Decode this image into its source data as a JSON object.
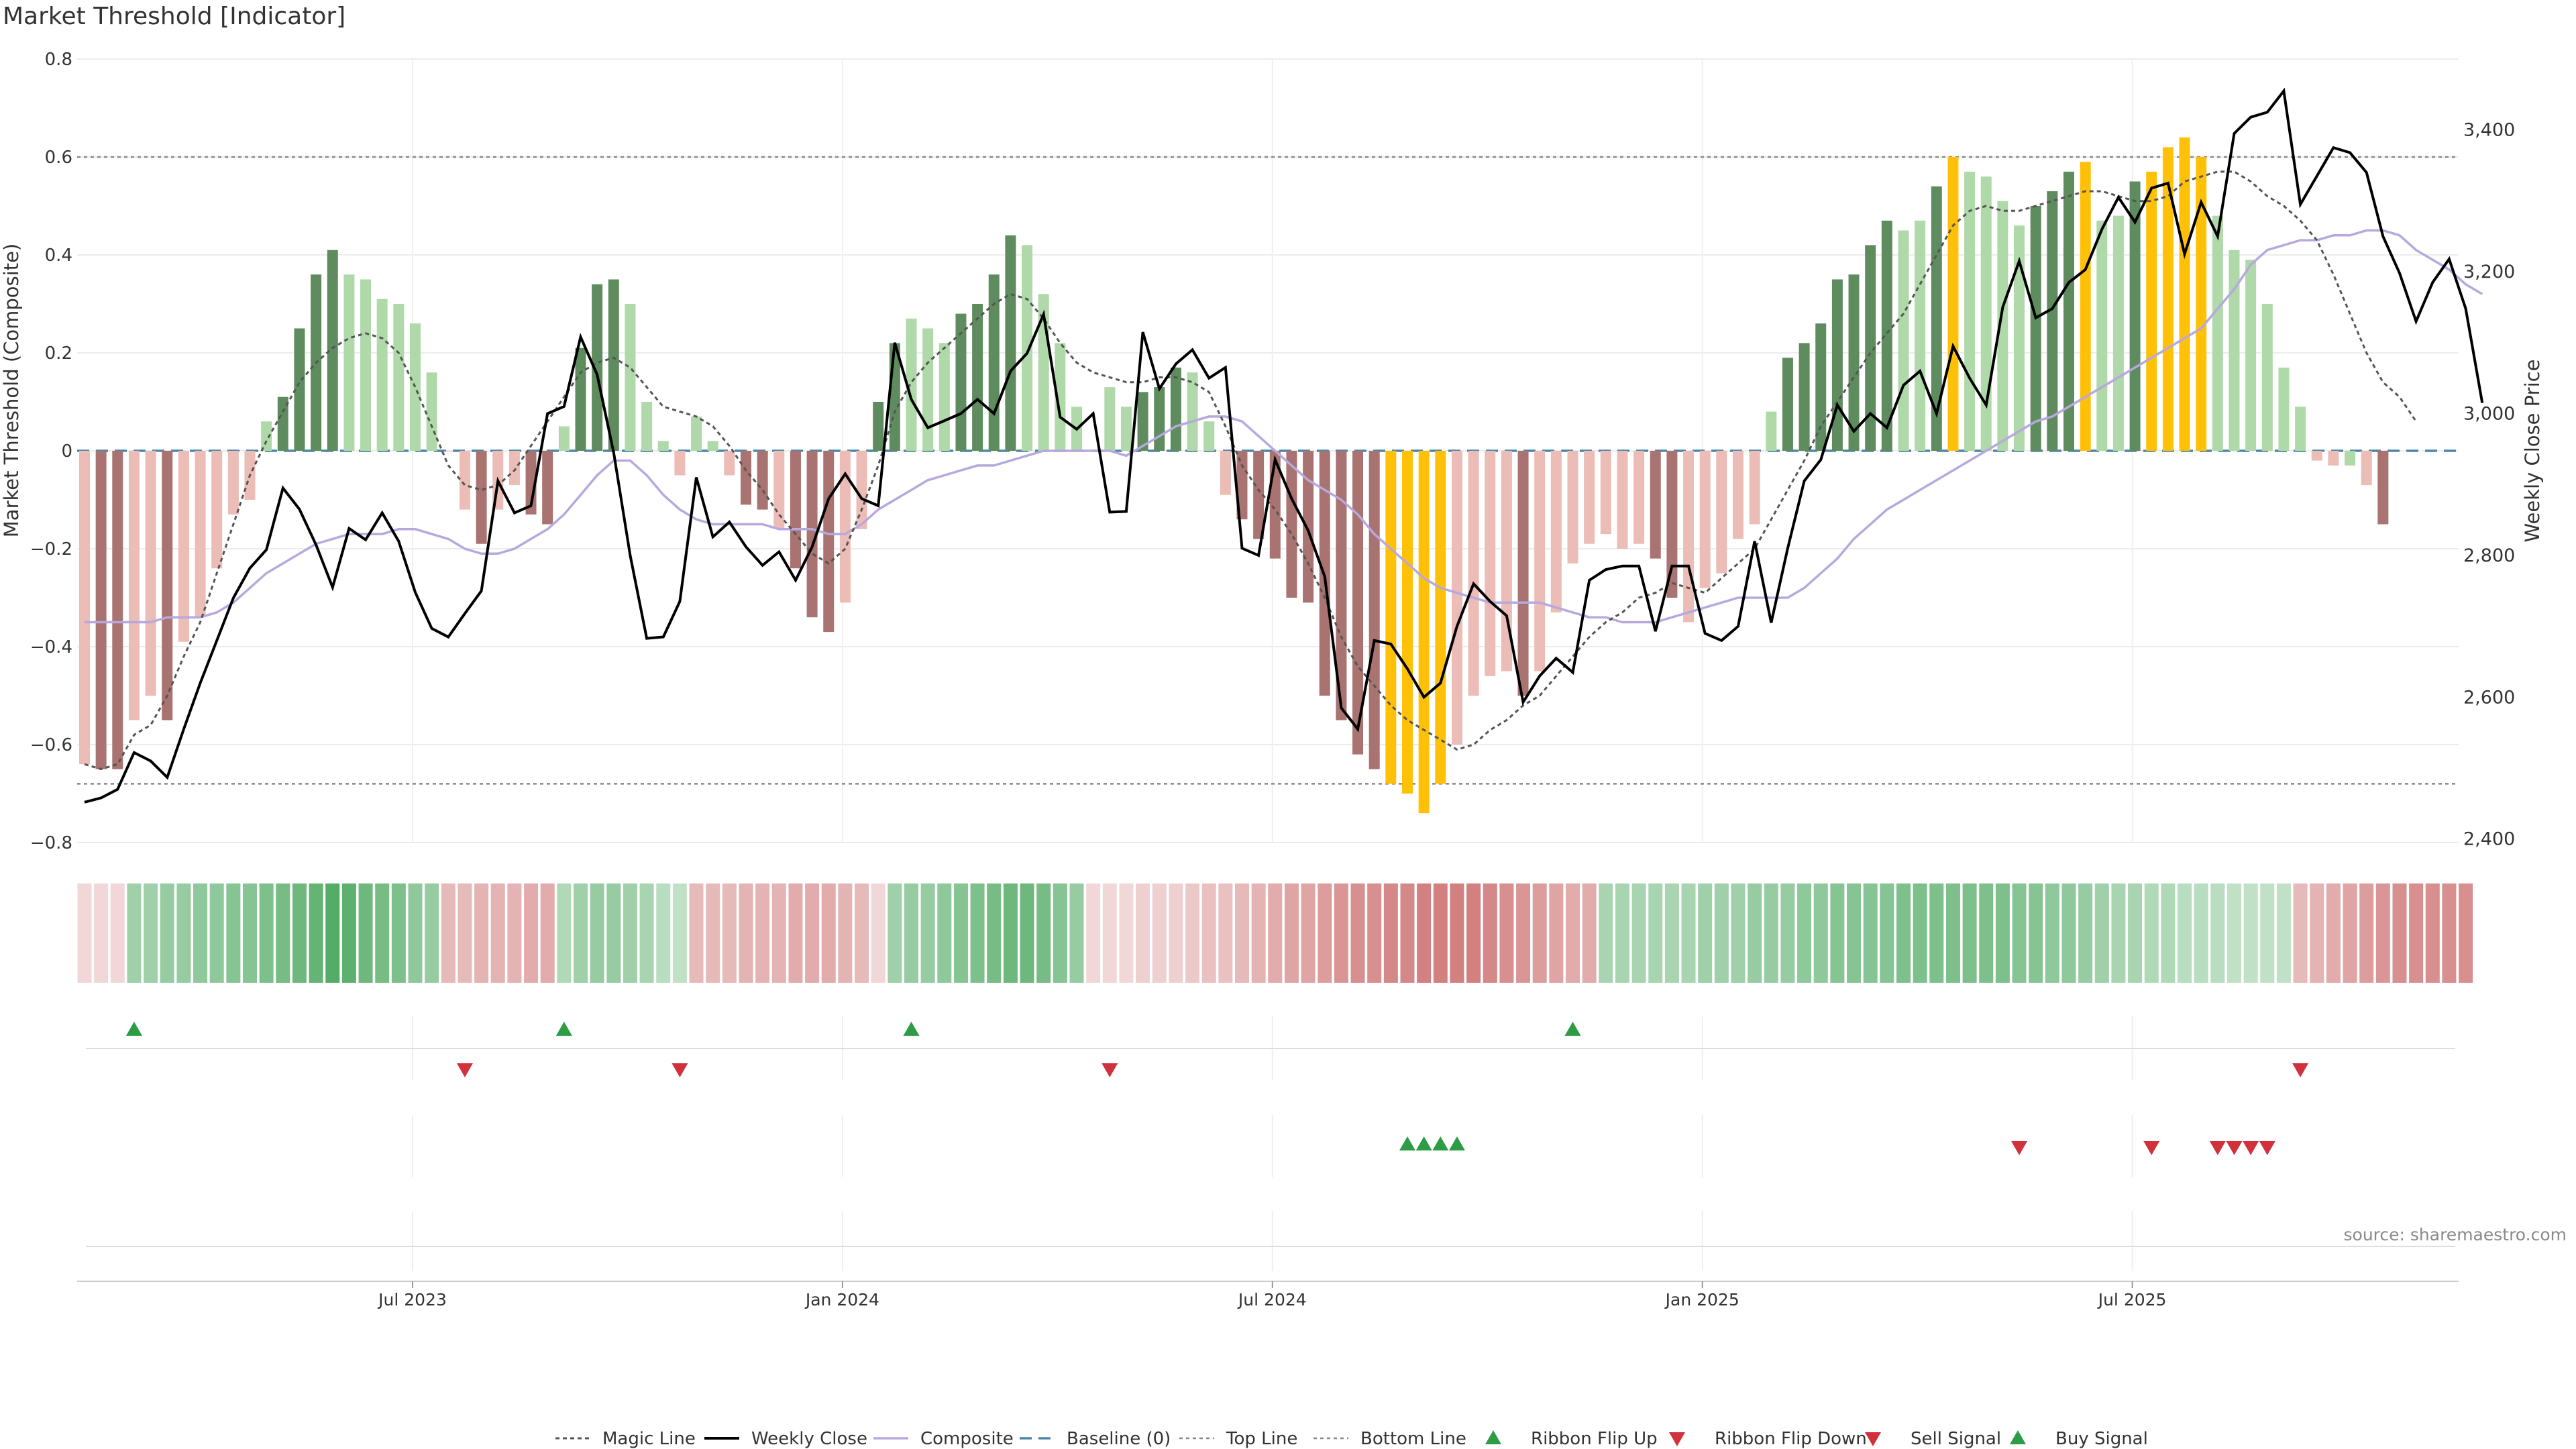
{
  "chart_data": {
    "type": "bar",
    "title": "Market Threshold [Indicator]",
    "ylabel": "Market Threshold (Composite)",
    "ylabel_right": "Weekly Close Price",
    "source": "source: sharemaestro.com",
    "ylim": [
      -0.8,
      0.8
    ],
    "y_ticks": [
      0.8,
      0.6,
      0.4,
      0.2,
      0,
      -0.2,
      -0.4,
      -0.6,
      -0.8
    ],
    "y_tick_labels": [
      "0.8",
      "0.6",
      "0.4",
      "0.2",
      "0",
      "−0.2",
      "−0.4",
      "−0.6",
      "−0.8"
    ],
    "y2lim": [
      2395,
      3500
    ],
    "y2_ticks": [
      3400,
      3200,
      3000,
      2800,
      2600,
      2400
    ],
    "y2_tick_labels": [
      "3,400",
      "3,200",
      "3,000",
      "2,800",
      "2,600",
      "2,400"
    ],
    "x_ticks": [
      {
        "label": "Jul 2023",
        "index": 20
      },
      {
        "label": "Jan 2024",
        "index": 46
      },
      {
        "label": "Jul 2024",
        "index": 72
      },
      {
        "label": "Jan 2025",
        "index": 98
      },
      {
        "label": "Jul 2025",
        "index": 124
      }
    ],
    "top_line": 0.6,
    "bottom_line": -0.68,
    "grid": true,
    "legend_position": "bottom",
    "colors": {
      "dark_green": "#5e8c5e",
      "light_green": "#afd9a9",
      "dark_red": "#a87370",
      "light_red": "#ecbcb6",
      "gold": "#ffc107",
      "magic_line": "#555555",
      "weekly_close": "#000000",
      "composite": "#b7a8dd",
      "baseline": "#4f86a8",
      "buy_marker": "#2e9c45",
      "sell_marker": "#d1313d"
    },
    "composite_bars": [
      -0.64,
      -0.65,
      -0.65,
      -0.55,
      -0.5,
      -0.55,
      -0.39,
      -0.34,
      -0.24,
      -0.13,
      -0.1,
      0.06,
      0.11,
      0.25,
      0.36,
      0.41,
      0.36,
      0.35,
      0.31,
      0.3,
      0.26,
      0.16,
      0,
      -0.12,
      -0.19,
      -0.12,
      -0.07,
      -0.13,
      -0.15,
      0.05,
      0.21,
      0.34,
      0.35,
      0.3,
      0.1,
      0.02,
      -0.05,
      0.07,
      0.02,
      -0.05,
      -0.11,
      -0.12,
      -0.16,
      -0.24,
      -0.34,
      -0.37,
      -0.31,
      -0.16,
      0.1,
      0.22,
      0.27,
      0.25,
      0.22,
      0.28,
      0.3,
      0.36,
      0.44,
      0.42,
      0.32,
      0.22,
      0.09,
      0,
      0.13,
      0.09,
      0.12,
      0.13,
      0.17,
      0.16,
      0.06,
      -0.09,
      -0.14,
      -0.18,
      -0.22,
      -0.3,
      -0.31,
      -0.5,
      -0.55,
      -0.62,
      -0.65,
      -0.68,
      -0.7,
      -0.74,
      -0.68,
      -0.6,
      -0.5,
      -0.46,
      -0.45,
      -0.5,
      -0.45,
      -0.33,
      -0.23,
      -0.19,
      -0.17,
      -0.2,
      -0.19,
      -0.22,
      -0.3,
      -0.35,
      -0.28,
      -0.25,
      -0.18,
      -0.15,
      0.08,
      0.19,
      0.22,
      0.26,
      0.35,
      0.36,
      0.42,
      0.47,
      0.45,
      0.47,
      0.54,
      0.6,
      0.57,
      0.56,
      0.51,
      0.46,
      0.5,
      0.53,
      0.57,
      0.59,
      0.47,
      0.48,
      0.55,
      0.57,
      0.62,
      0.64,
      0.6,
      0.48,
      0.41,
      0.39,
      0.3,
      0.17,
      0.09,
      -0.02,
      -0.03,
      -0.03,
      -0.07,
      -0.15
    ],
    "bar_colors": [
      "light_red",
      "dark_red",
      "dark_red",
      "light_red",
      "light_red",
      "dark_red",
      "light_red",
      "light_red",
      "light_red",
      "light_red",
      "light_red",
      "light_green",
      "dark_green",
      "dark_green",
      "dark_green",
      "dark_green",
      "light_green",
      "light_green",
      "light_green",
      "light_green",
      "light_green",
      "light_green",
      "light_red",
      "light_red",
      "dark_red",
      "light_red",
      "light_red",
      "dark_red",
      "dark_red",
      "light_green",
      "dark_green",
      "dark_green",
      "dark_green",
      "light_green",
      "light_green",
      "light_green",
      "light_red",
      "light_green",
      "light_green",
      "light_red",
      "dark_red",
      "dark_red",
      "light_red",
      "dark_red",
      "dark_red",
      "dark_red",
      "light_red",
      "light_red",
      "dark_green",
      "dark_green",
      "light_green",
      "light_green",
      "light_green",
      "dark_green",
      "dark_green",
      "dark_green",
      "dark_green",
      "light_green",
      "light_green",
      "light_green",
      "light_green",
      "light_red",
      "light_green",
      "light_green",
      "dark_green",
      "dark_green",
      "dark_green",
      "light_green",
      "light_green",
      "light_red",
      "dark_red",
      "dark_red",
      "dark_red",
      "dark_red",
      "dark_red",
      "dark_red",
      "dark_red",
      "dark_red",
      "dark_red",
      "gold",
      "gold",
      "gold",
      "gold",
      "light_red",
      "light_red",
      "light_red",
      "light_red",
      "dark_red",
      "light_red",
      "light_red",
      "light_red",
      "light_red",
      "light_red",
      "light_red",
      "light_red",
      "dark_red",
      "dark_red",
      "light_red",
      "light_red",
      "light_red",
      "light_red",
      "light_red",
      "light_green",
      "dark_green",
      "dark_green",
      "dark_green",
      "dark_green",
      "dark_green",
      "dark_green",
      "dark_green",
      "light_green",
      "light_green",
      "dark_green",
      "gold",
      "light_green",
      "light_green",
      "light_green",
      "light_green",
      "dark_green",
      "dark_green",
      "dark_green",
      "gold",
      "light_green",
      "light_green",
      "dark_green",
      "gold",
      "gold",
      "gold",
      "gold",
      "light_green",
      "light_green",
      "light_green",
      "light_green",
      "light_green",
      "light_green",
      "light_red",
      "light_red",
      "light_green",
      "light_red",
      "dark_red"
    ],
    "weekly_close": [
      2452,
      2458,
      2470,
      2522,
      2510,
      2487,
      2555,
      2620,
      2680,
      2740,
      2782,
      2808,
      2895,
      2865,
      2815,
      2755,
      2838,
      2822,
      2860,
      2820,
      2748,
      2697,
      2685,
      2718,
      2750,
      2905,
      2860,
      2870,
      3000,
      3010,
      3108,
      3055,
      2945,
      2800,
      2683,
      2685,
      2735,
      2910,
      2826,
      2847,
      2812,
      2786,
      2805,
      2765,
      2812,
      2880,
      2915,
      2880,
      2870,
      3100,
      3020,
      2980,
      2990,
      3000,
      3020,
      3000,
      3060,
      3085,
      3140,
      2995,
      2978,
      3000,
      2861,
      2862,
      3115,
      3035,
      3070,
      3090,
      3050,
      3065,
      2810,
      2800,
      2935,
      2880,
      2835,
      2770,
      2585,
      2555,
      2680,
      2675,
      2640,
      2600,
      2620,
      2700,
      2760,
      2735,
      2715,
      2593,
      2630,
      2655,
      2635,
      2765,
      2780,
      2785,
      2785,
      2693,
      2785,
      2785,
      2690,
      2680,
      2700,
      2820,
      2705,
      2810,
      2905,
      2935,
      3012,
      2975,
      3000,
      2980,
      3040,
      3060,
      3000,
      3095,
      3050,
      3012,
      3150,
      3215,
      3135,
      3148,
      3185,
      3203,
      3260,
      3305,
      3270,
      3318,
      3325,
      3225,
      3298,
      3250,
      3395,
      3418,
      3425,
      3455,
      3295,
      3335,
      3375,
      3368,
      3340,
      3250,
      3198,
      3130,
      3185,
      3218,
      3148,
      3015
    ],
    "magic_line": [
      -0.64,
      -0.65,
      -0.64,
      -0.58,
      -0.56,
      -0.5,
      -0.42,
      -0.35,
      -0.25,
      -0.15,
      -0.05,
      0.02,
      0.08,
      0.14,
      0.18,
      0.21,
      0.23,
      0.24,
      0.23,
      0.2,
      0.13,
      0.05,
      -0.03,
      -0.07,
      -0.08,
      -0.07,
      -0.04,
      0.01,
      0.06,
      0.11,
      0.16,
      0.18,
      0.19,
      0.17,
      0.13,
      0.09,
      0.08,
      0.07,
      0.05,
      0.01,
      -0.04,
      -0.08,
      -0.13,
      -0.17,
      -0.21,
      -0.23,
      -0.2,
      -0.12,
      -0.03,
      0.08,
      0.14,
      0.18,
      0.21,
      0.24,
      0.27,
      0.3,
      0.32,
      0.31,
      0.27,
      0.22,
      0.18,
      0.16,
      0.15,
      0.14,
      0.14,
      0.15,
      0.15,
      0.14,
      0.12,
      0.05,
      -0.03,
      -0.08,
      -0.12,
      -0.17,
      -0.23,
      -0.3,
      -0.38,
      -0.44,
      -0.48,
      -0.52,
      -0.55,
      -0.57,
      -0.59,
      -0.61,
      -0.6,
      -0.57,
      -0.55,
      -0.52,
      -0.5,
      -0.46,
      -0.42,
      -0.38,
      -0.35,
      -0.33,
      -0.3,
      -0.29,
      -0.27,
      -0.28,
      -0.29,
      -0.26,
      -0.23,
      -0.2,
      -0.14,
      -0.08,
      -0.02,
      0.05,
      0.1,
      0.15,
      0.2,
      0.24,
      0.28,
      0.34,
      0.4,
      0.46,
      0.49,
      0.5,
      0.49,
      0.49,
      0.5,
      0.51,
      0.52,
      0.53,
      0.53,
      0.52,
      0.51,
      0.51,
      0.52,
      0.55,
      0.56,
      0.57,
      0.57,
      0.55,
      0.52,
      0.5,
      0.47,
      0.43,
      0.36,
      0.28,
      0.2,
      0.14,
      0.11,
      0.06
    ],
    "composite_line": [
      -0.35,
      -0.35,
      -0.35,
      -0.35,
      -0.35,
      -0.34,
      -0.34,
      -0.34,
      -0.33,
      -0.31,
      -0.28,
      -0.25,
      -0.23,
      -0.21,
      -0.19,
      -0.18,
      -0.17,
      -0.17,
      -0.17,
      -0.16,
      -0.16,
      -0.17,
      -0.18,
      -0.2,
      -0.21,
      -0.21,
      -0.2,
      -0.18,
      -0.16,
      -0.13,
      -0.09,
      -0.05,
      -0.02,
      -0.02,
      -0.05,
      -0.09,
      -0.12,
      -0.14,
      -0.15,
      -0.15,
      -0.15,
      -0.15,
      -0.16,
      -0.16,
      -0.16,
      -0.17,
      -0.17,
      -0.15,
      -0.12,
      -0.1,
      -0.08,
      -0.06,
      -0.05,
      -0.04,
      -0.03,
      -0.03,
      -0.02,
      -0.01,
      0,
      0,
      0,
      0,
      0,
      -0.01,
      0.01,
      0.03,
      0.05,
      0.06,
      0.07,
      0.07,
      0.06,
      0.03,
      0,
      -0.03,
      -0.06,
      -0.08,
      -0.1,
      -0.13,
      -0.17,
      -0.2,
      -0.23,
      -0.26,
      -0.28,
      -0.29,
      -0.3,
      -0.31,
      -0.31,
      -0.31,
      -0.31,
      -0.32,
      -0.33,
      -0.34,
      -0.34,
      -0.35,
      -0.35,
      -0.35,
      -0.34,
      -0.33,
      -0.32,
      -0.31,
      -0.3,
      -0.3,
      -0.3,
      -0.3,
      -0.28,
      -0.25,
      -0.22,
      -0.18,
      -0.15,
      -0.12,
      -0.1,
      -0.08,
      -0.06,
      -0.04,
      -0.02,
      0,
      0.02,
      0.04,
      0.06,
      0.07,
      0.09,
      0.11,
      0.13,
      0.15,
      0.17,
      0.19,
      0.21,
      0.23,
      0.25,
      0.29,
      0.33,
      0.38,
      0.41,
      0.42,
      0.43,
      0.43,
      0.44,
      0.44,
      0.45,
      0.45,
      0.44,
      0.41,
      0.39,
      0.37,
      0.34,
      0.32
    ],
    "ribbon_levels": [
      -0.1,
      -0.1,
      -0.1,
      0.4,
      0.4,
      0.45,
      0.45,
      0.5,
      0.5,
      0.55,
      0.55,
      0.6,
      0.65,
      0.7,
      0.75,
      0.85,
      0.8,
      0.7,
      0.65,
      0.6,
      0.5,
      0.45,
      -0.3,
      -0.3,
      -0.35,
      -0.35,
      -0.35,
      -0.4,
      -0.4,
      0.3,
      0.4,
      0.45,
      0.45,
      0.4,
      0.35,
      0.25,
      0.2,
      -0.3,
      -0.3,
      -0.3,
      -0.35,
      -0.35,
      -0.35,
      -0.4,
      -0.4,
      -0.4,
      -0.35,
      -0.3,
      -0.1,
      0.4,
      0.45,
      0.45,
      0.5,
      0.55,
      0.6,
      0.65,
      0.7,
      0.7,
      0.65,
      0.55,
      0.45,
      -0.1,
      -0.1,
      -0.1,
      -0.15,
      -0.15,
      -0.15,
      -0.2,
      -0.25,
      -0.25,
      -0.3,
      -0.35,
      -0.4,
      -0.45,
      -0.45,
      -0.5,
      -0.55,
      -0.6,
      -0.6,
      -0.65,
      -0.65,
      -0.7,
      -0.7,
      -0.7,
      -0.7,
      -0.65,
      -0.6,
      -0.55,
      -0.5,
      -0.45,
      -0.4,
      -0.4,
      0.35,
      0.35,
      0.35,
      0.35,
      0.35,
      0.35,
      0.4,
      0.4,
      0.4,
      0.45,
      0.45,
      0.45,
      0.5,
      0.5,
      0.55,
      0.55,
      0.55,
      0.55,
      0.6,
      0.6,
      0.6,
      0.6,
      0.6,
      0.6,
      0.6,
      0.55,
      0.55,
      0.5,
      0.5,
      0.45,
      0.4,
      0.35,
      0.35,
      0.3,
      0.3,
      0.25,
      0.25,
      0.25,
      0.2,
      0.2,
      0.2,
      0.2,
      -0.3,
      -0.35,
      -0.4,
      -0.45,
      -0.5,
      -0.55,
      -0.6,
      -0.6,
      -0.6,
      -0.6,
      -0.6
    ],
    "ribbon_flip_up": [
      3,
      29,
      50,
      90
    ],
    "ribbon_flip_down": [
      23,
      36,
      62,
      134
    ],
    "buy_signals": [
      80,
      81,
      82,
      83
    ],
    "sell_signals": [
      117,
      125,
      129,
      130,
      131,
      132
    ]
  },
  "legend": [
    {
      "label": "Magic Line",
      "key": "magic_line"
    },
    {
      "label": "Weekly Close",
      "key": "weekly_close"
    },
    {
      "label": "Composite",
      "key": "composite"
    },
    {
      "label": "Baseline (0)",
      "key": "baseline"
    },
    {
      "label": "Top Line",
      "key": "top_line"
    },
    {
      "label": "Bottom Line",
      "key": "bottom_line"
    },
    {
      "label": "Ribbon Flip Up",
      "key": "ribbon_flip_up"
    },
    {
      "label": "Ribbon Flip Down",
      "key": "ribbon_flip_down"
    },
    {
      "label": "Sell Signal",
      "key": "sell_signal"
    },
    {
      "label": "Buy Signal",
      "key": "buy_signal"
    }
  ]
}
